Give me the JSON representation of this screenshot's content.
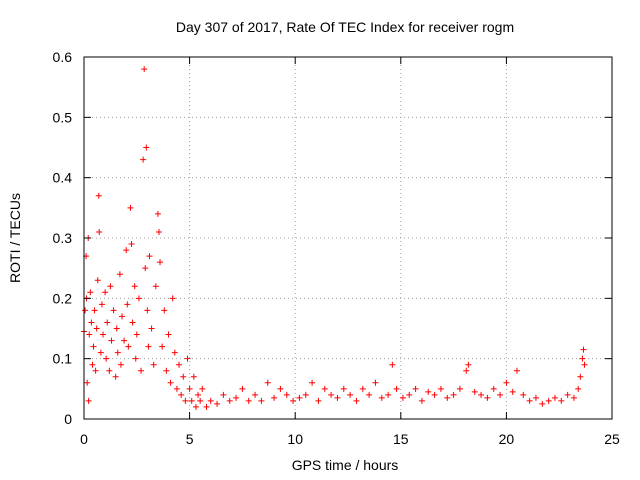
{
  "chart_data": {
    "type": "scatter",
    "title": "Day 307 of 2017, Rate Of TEC Index for receiver rogm",
    "xlabel": "GPS time / hours",
    "ylabel": "ROTI / TECUs",
    "xlim": [
      0,
      25
    ],
    "ylim": [
      0,
      0.6
    ],
    "xticks": [
      0,
      5,
      10,
      15,
      20,
      25
    ],
    "xtick_labels": [
      "0",
      "5",
      "10",
      "15",
      "20",
      "25"
    ],
    "yticks": [
      0,
      0.1,
      0.2,
      0.3,
      0.4,
      0.5,
      0.6
    ],
    "ytick_labels": [
      "0",
      "0.1",
      "0.2",
      "0.3",
      "0.4",
      "0.5",
      "0.6"
    ],
    "grid": true,
    "marker": "+",
    "color": "#ff0000",
    "series": [
      {
        "name": "ROTI",
        "points": [
          [
            0.0,
            0.145
          ],
          [
            0.05,
            0.18
          ],
          [
            0.1,
            0.27
          ],
          [
            0.12,
            0.2
          ],
          [
            0.15,
            0.06
          ],
          [
            0.2,
            0.3
          ],
          [
            0.22,
            0.03
          ],
          [
            0.25,
            0.14
          ],
          [
            0.3,
            0.21
          ],
          [
            0.35,
            0.16
          ],
          [
            0.4,
            0.09
          ],
          [
            0.45,
            0.12
          ],
          [
            0.5,
            0.18
          ],
          [
            0.55,
            0.08
          ],
          [
            0.6,
            0.15
          ],
          [
            0.65,
            0.23
          ],
          [
            0.7,
            0.37
          ],
          [
            0.72,
            0.31
          ],
          [
            0.8,
            0.11
          ],
          [
            0.85,
            0.19
          ],
          [
            0.9,
            0.14
          ],
          [
            1.0,
            0.21
          ],
          [
            1.05,
            0.1
          ],
          [
            1.1,
            0.16
          ],
          [
            1.2,
            0.08
          ],
          [
            1.25,
            0.22
          ],
          [
            1.3,
            0.13
          ],
          [
            1.4,
            0.18
          ],
          [
            1.5,
            0.07
          ],
          [
            1.55,
            0.15
          ],
          [
            1.6,
            0.11
          ],
          [
            1.7,
            0.24
          ],
          [
            1.75,
            0.09
          ],
          [
            1.8,
            0.17
          ],
          [
            1.9,
            0.13
          ],
          [
            2.0,
            0.28
          ],
          [
            2.05,
            0.19
          ],
          [
            2.1,
            0.12
          ],
          [
            2.2,
            0.35
          ],
          [
            2.25,
            0.29
          ],
          [
            2.3,
            0.16
          ],
          [
            2.4,
            0.22
          ],
          [
            2.45,
            0.1
          ],
          [
            2.5,
            0.14
          ],
          [
            2.6,
            0.2
          ],
          [
            2.7,
            0.08
          ],
          [
            2.8,
            0.43
          ],
          [
            2.85,
            0.58
          ],
          [
            2.9,
            0.25
          ],
          [
            2.95,
            0.45
          ],
          [
            3.0,
            0.18
          ],
          [
            3.05,
            0.12
          ],
          [
            3.1,
            0.27
          ],
          [
            3.2,
            0.15
          ],
          [
            3.3,
            0.09
          ],
          [
            3.4,
            0.22
          ],
          [
            3.5,
            0.34
          ],
          [
            3.55,
            0.31
          ],
          [
            3.6,
            0.26
          ],
          [
            3.7,
            0.12
          ],
          [
            3.8,
            0.18
          ],
          [
            3.9,
            0.08
          ],
          [
            4.0,
            0.14
          ],
          [
            4.1,
            0.06
          ],
          [
            4.2,
            0.2
          ],
          [
            4.3,
            0.11
          ],
          [
            4.4,
            0.05
          ],
          [
            4.5,
            0.09
          ],
          [
            4.6,
            0.04
          ],
          [
            4.7,
            0.07
          ],
          [
            4.8,
            0.03
          ],
          [
            4.9,
            0.1
          ],
          [
            5.0,
            0.05
          ],
          [
            5.1,
            0.03
          ],
          [
            5.2,
            0.07
          ],
          [
            5.3,
            0.02
          ],
          [
            5.4,
            0.04
          ],
          [
            5.5,
            0.03
          ],
          [
            5.6,
            0.05
          ],
          [
            5.8,
            0.02
          ],
          [
            6.0,
            0.03
          ],
          [
            6.3,
            0.025
          ],
          [
            6.6,
            0.04
          ],
          [
            6.9,
            0.03
          ],
          [
            7.2,
            0.035
          ],
          [
            7.5,
            0.05
          ],
          [
            7.8,
            0.03
          ],
          [
            8.1,
            0.04
          ],
          [
            8.4,
            0.03
          ],
          [
            8.7,
            0.06
          ],
          [
            9.0,
            0.035
          ],
          [
            9.3,
            0.05
          ],
          [
            9.6,
            0.04
          ],
          [
            9.9,
            0.03
          ],
          [
            10.2,
            0.035
          ],
          [
            10.5,
            0.04
          ],
          [
            10.8,
            0.06
          ],
          [
            11.1,
            0.03
          ],
          [
            11.4,
            0.05
          ],
          [
            11.7,
            0.04
          ],
          [
            12.0,
            0.035
          ],
          [
            12.3,
            0.05
          ],
          [
            12.6,
            0.04
          ],
          [
            12.9,
            0.03
          ],
          [
            13.2,
            0.05
          ],
          [
            13.5,
            0.04
          ],
          [
            13.8,
            0.06
          ],
          [
            14.1,
            0.035
          ],
          [
            14.4,
            0.04
          ],
          [
            14.6,
            0.09
          ],
          [
            14.8,
            0.05
          ],
          [
            15.1,
            0.035
          ],
          [
            15.4,
            0.04
          ],
          [
            15.7,
            0.05
          ],
          [
            16.0,
            0.03
          ],
          [
            16.3,
            0.045
          ],
          [
            16.6,
            0.04
          ],
          [
            16.9,
            0.05
          ],
          [
            17.2,
            0.035
          ],
          [
            17.5,
            0.04
          ],
          [
            17.8,
            0.05
          ],
          [
            18.1,
            0.08
          ],
          [
            18.2,
            0.09
          ],
          [
            18.5,
            0.045
          ],
          [
            18.8,
            0.04
          ],
          [
            19.1,
            0.035
          ],
          [
            19.4,
            0.05
          ],
          [
            19.7,
            0.04
          ],
          [
            20.0,
            0.06
          ],
          [
            20.3,
            0.045
          ],
          [
            20.5,
            0.08
          ],
          [
            20.8,
            0.04
          ],
          [
            21.1,
            0.03
          ],
          [
            21.4,
            0.035
          ],
          [
            21.7,
            0.025
          ],
          [
            22.0,
            0.03
          ],
          [
            22.3,
            0.035
          ],
          [
            22.6,
            0.03
          ],
          [
            22.9,
            0.04
          ],
          [
            23.2,
            0.035
          ],
          [
            23.4,
            0.05
          ],
          [
            23.5,
            0.07
          ],
          [
            23.6,
            0.1
          ],
          [
            23.65,
            0.115
          ],
          [
            23.7,
            0.09
          ]
        ]
      }
    ]
  }
}
